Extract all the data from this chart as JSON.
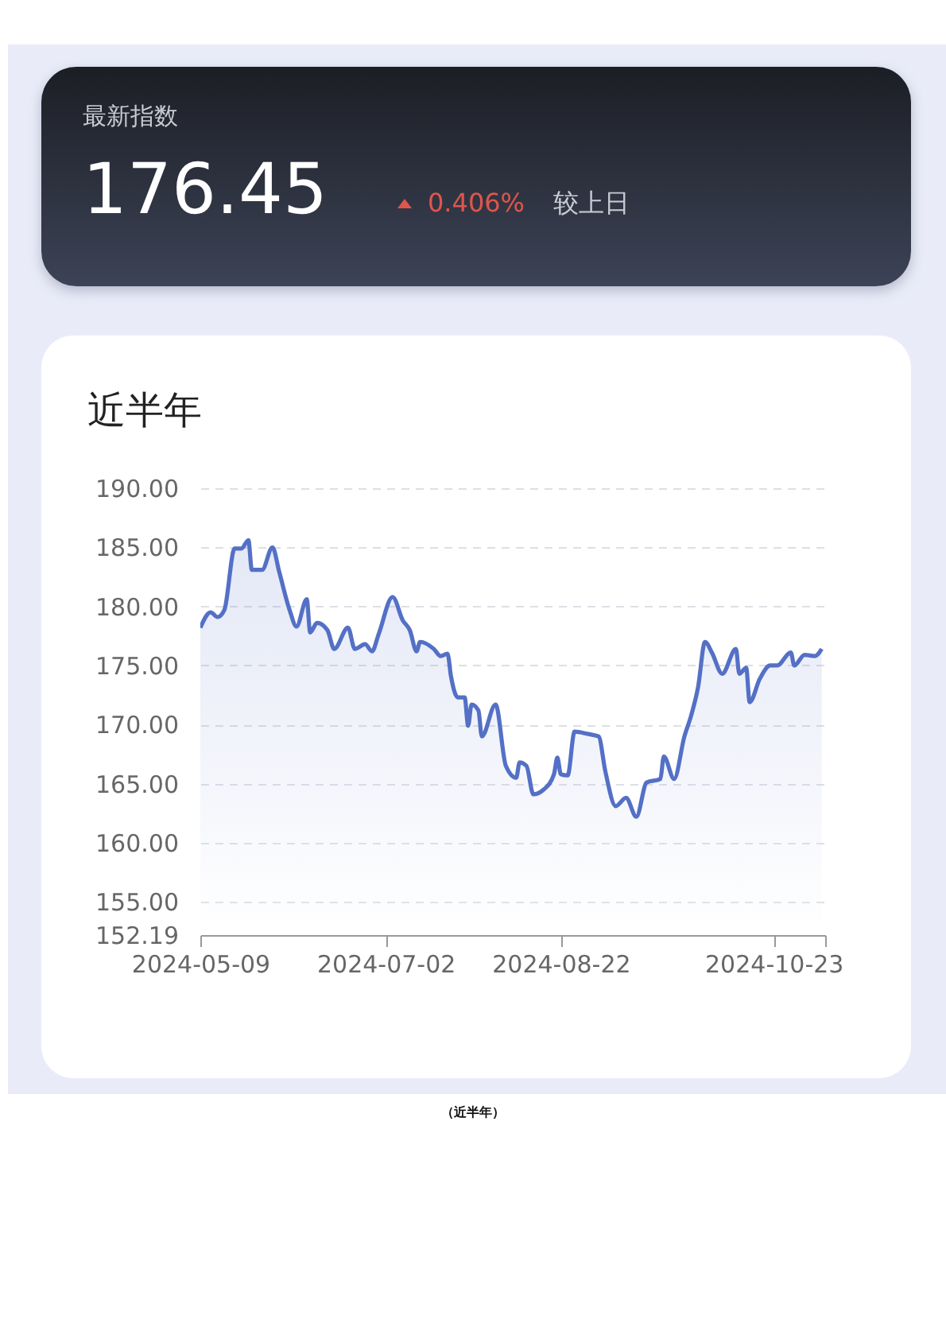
{
  "chart_data": [
    {
      "type": "other",
      "title": "最新指数",
      "annotations": [
        "176.45",
        "0.406%",
        "较上日"
      ]
    },
    {
      "type": "area",
      "title": "近半年",
      "grid": "y",
      "x": [
        "2024-05-09",
        "2024-05-12",
        "2024-05-14",
        "2024-05-16",
        "2024-05-19",
        "2024-05-21",
        "2024-05-23",
        "2024-05-24",
        "2024-05-27",
        "2024-05-30",
        "2024-06-01",
        "2024-06-04",
        "2024-06-06",
        "2024-06-09",
        "2024-06-10",
        "2024-06-12",
        "2024-06-15",
        "2024-06-17",
        "2024-06-21",
        "2024-06-23",
        "2024-06-26",
        "2024-06-28",
        "2024-06-30",
        "2024-07-04",
        "2024-07-07",
        "2024-07-09",
        "2024-07-11",
        "2024-07-12",
        "2024-07-16",
        "2024-07-18",
        "2024-07-20",
        "2024-07-21",
        "2024-07-23",
        "2024-07-25",
        "2024-07-26",
        "2024-07-27",
        "2024-07-29",
        "2024-07-30",
        "2024-08-03",
        "2024-08-06",
        "2024-08-09",
        "2024-08-10",
        "2024-08-12",
        "2024-08-14",
        "2024-08-17",
        "2024-08-20",
        "2024-08-21",
        "2024-08-22",
        "2024-08-24",
        "2024-08-26",
        "2024-08-30",
        "2024-09-02",
        "2024-09-04",
        "2024-09-07",
        "2024-09-10",
        "2024-09-13",
        "2024-09-16",
        "2024-09-20",
        "2024-09-21",
        "2024-09-24",
        "2024-09-27",
        "2024-09-29",
        "2024-10-01",
        "2024-10-03",
        "2024-10-05",
        "2024-10-08",
        "2024-10-12",
        "2024-10-13",
        "2024-10-15",
        "2024-10-16",
        "2024-10-19",
        "2024-10-22",
        "2024-10-24",
        "2024-10-28",
        "2024-10-29",
        "2024-11-01",
        "2024-11-04",
        "2024-11-06"
      ],
      "series": [
        {
          "color": "#5470c6",
          "values": [
            178.2,
            179.5,
            179.1,
            179.7,
            184.9,
            184.9,
            185.6,
            183.1,
            183.1,
            185.0,
            182.9,
            179.7,
            178.3,
            180.6,
            177.8,
            178.6,
            178.0,
            176.4,
            178.2,
            176.4,
            176.8,
            176.2,
            177.7,
            180.8,
            178.8,
            178.0,
            176.2,
            177.0,
            176.4,
            175.8,
            176.0,
            174.1,
            172.3,
            172.3,
            169.9,
            171.7,
            171.2,
            169.0,
            171.7,
            166.5,
            165.5,
            166.8,
            166.5,
            164.1,
            164.5,
            165.8,
            167.2,
            165.8,
            165.7,
            169.4,
            169.2,
            169.0,
            166.0,
            163.1,
            163.8,
            162.2,
            165.1,
            165.4,
            167.3,
            165.4,
            169.0,
            170.8,
            173.2,
            177.0,
            176.1,
            174.3,
            176.4,
            174.3,
            174.8,
            171.9,
            173.9,
            175.0,
            175.0,
            176.1,
            175.0,
            175.9,
            175.8,
            176.4
          ]
        }
      ],
      "xlim": [
        "2024-05-09",
        "2024-11-07"
      ],
      "xticks": [
        "2024-05-09",
        "2024-07-02",
        "2024-08-22",
        "2024-10-23",
        {
          "value": "2024-11-07",
          "label": null
        }
      ],
      "ylim": [
        152.19,
        190
      ],
      "yticks": [
        {
          "value": 152.19,
          "label": "152.19"
        },
        {
          "value": 155,
          "label": "155.00"
        },
        {
          "value": 160,
          "label": "160.00"
        },
        {
          "value": 165,
          "label": "165.00"
        },
        {
          "value": 170,
          "label": "170.00"
        },
        {
          "value": 175,
          "label": "175.00"
        },
        {
          "value": 180,
          "label": "180.00"
        },
        {
          "value": 185,
          "label": "185.00"
        },
        {
          "value": 190,
          "label": "190.00"
        }
      ],
      "annotations": [
        "（近半年）"
      ]
    }
  ]
}
